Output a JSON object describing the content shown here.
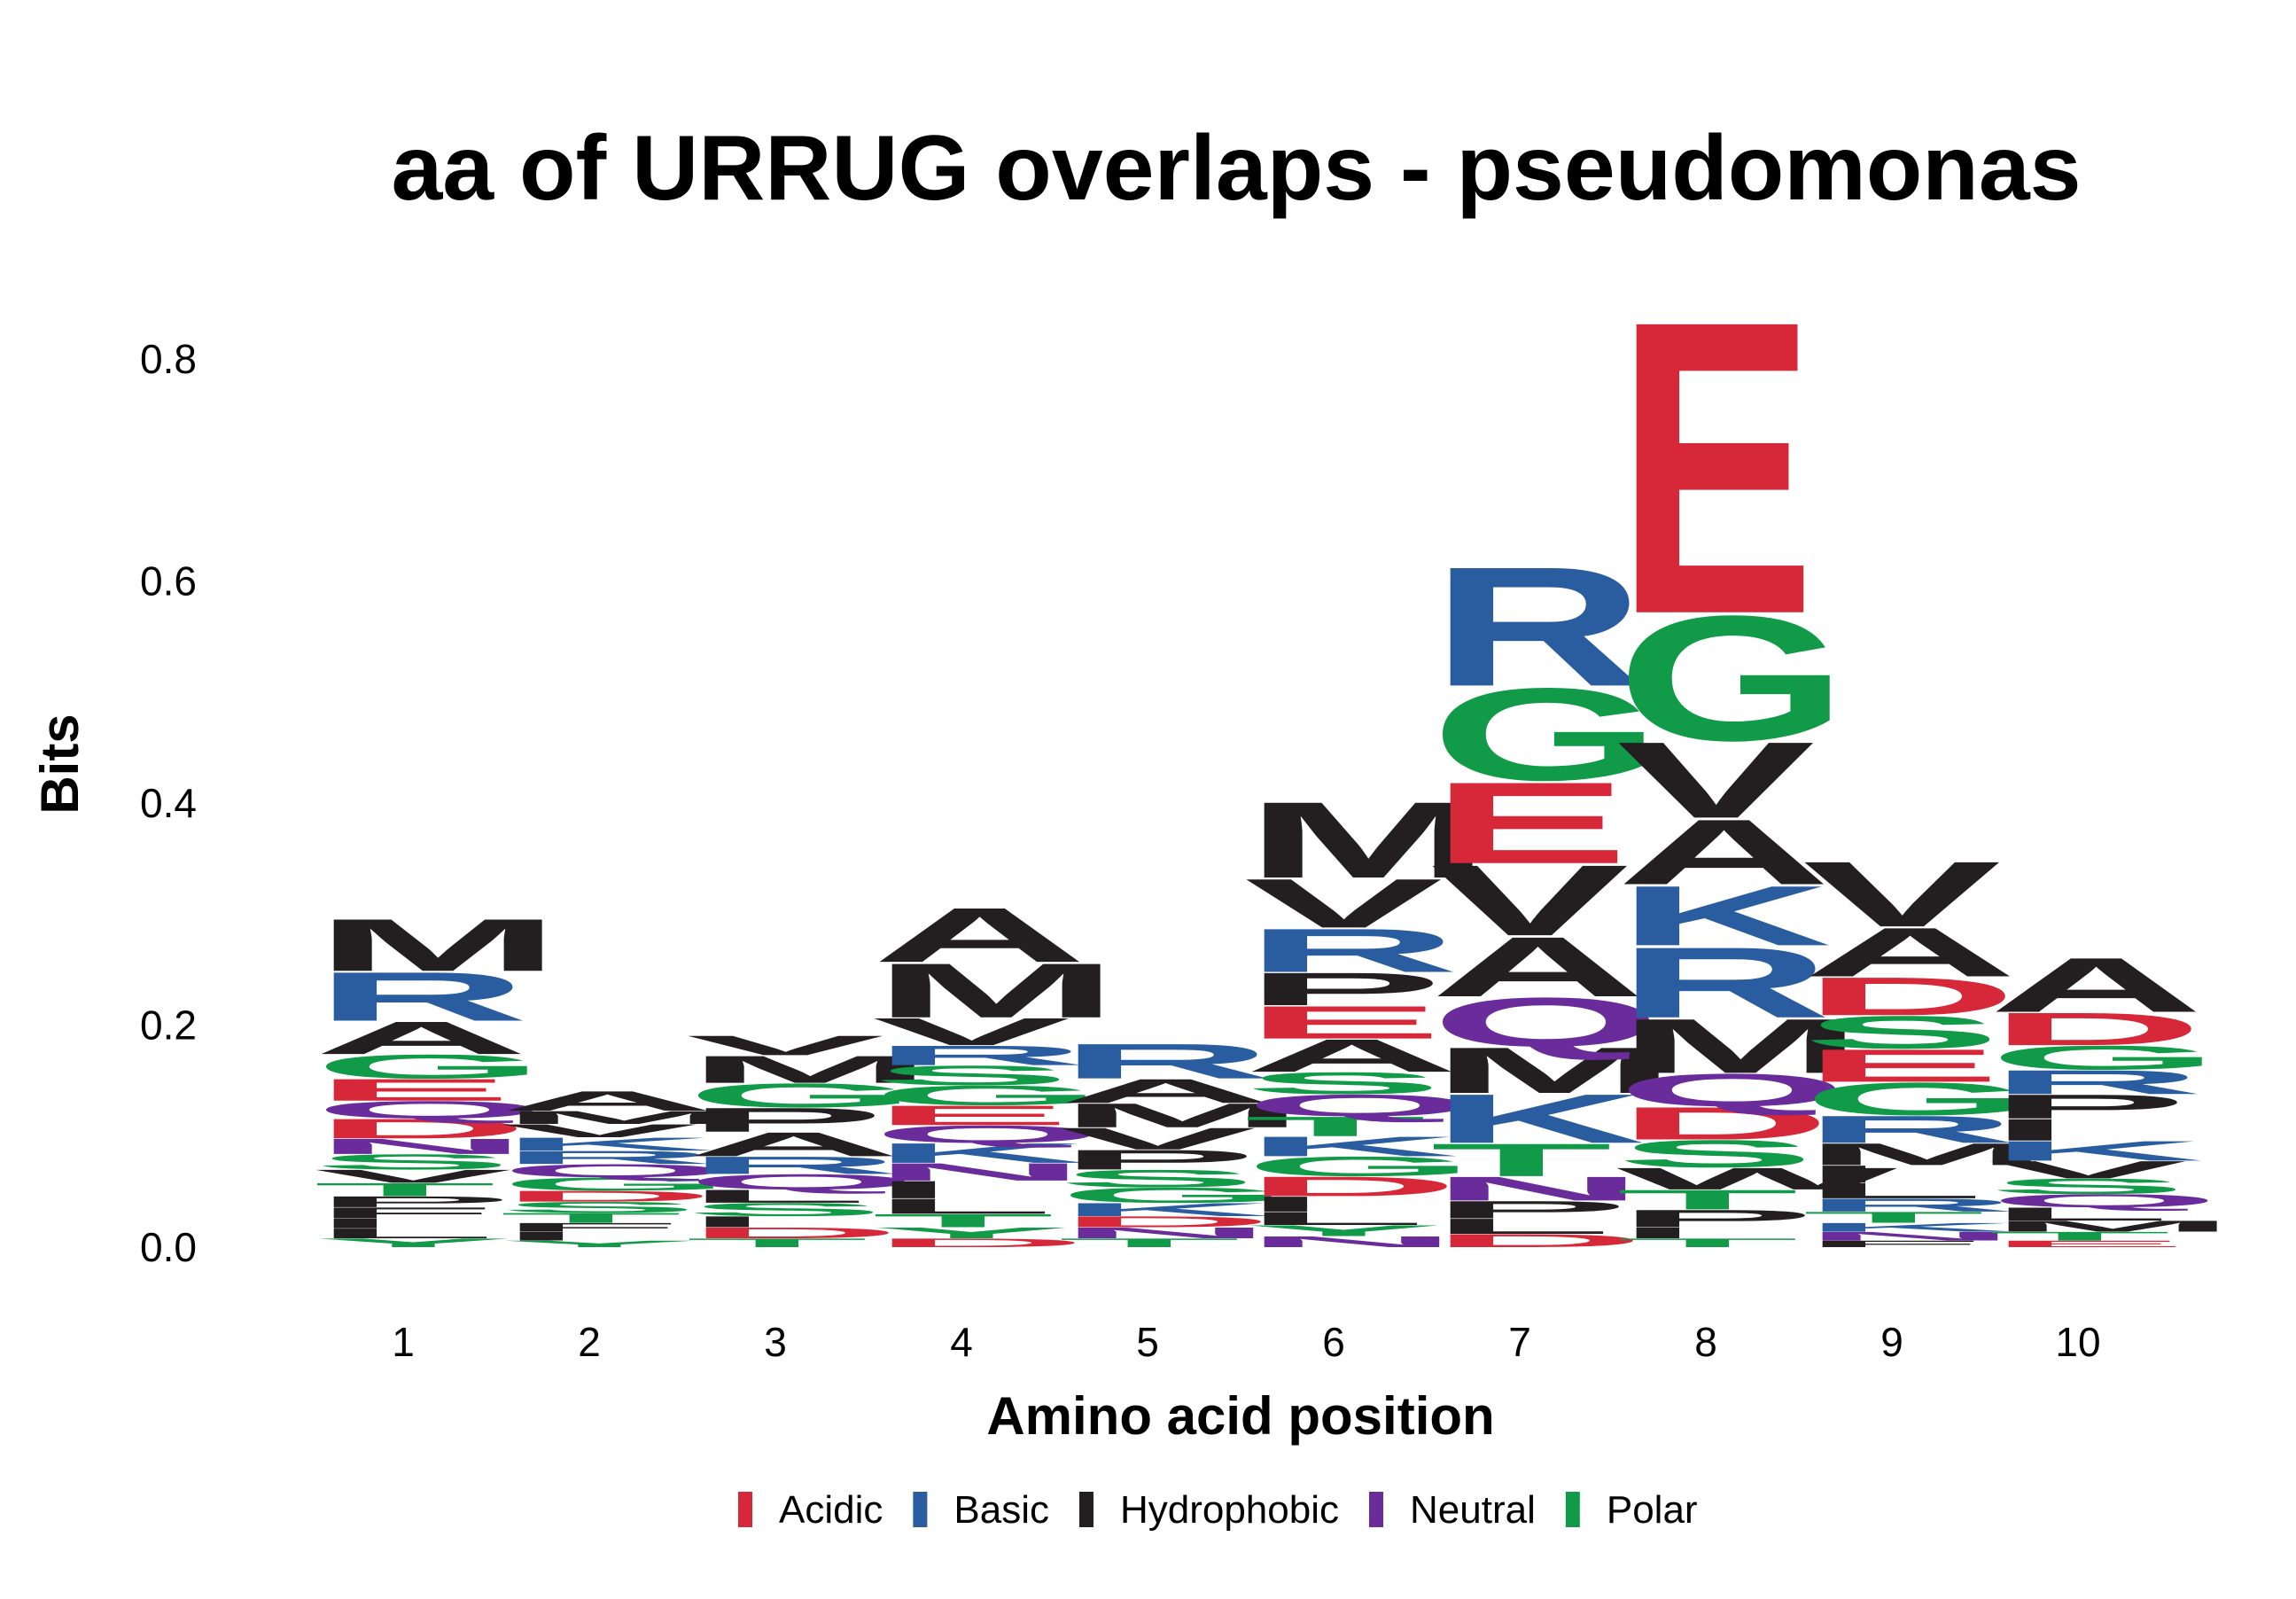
{
  "chart_data": {
    "type": "sequence-logo",
    "title": "aa of URRUG overlaps - pseudomonas",
    "xlabel": "Amino acid position",
    "ylabel": "Bits",
    "x_ticks": [
      "1",
      "2",
      "3",
      "4",
      "5",
      "6",
      "7",
      "8",
      "9",
      "10"
    ],
    "y_ticks": [
      "0.0",
      "0.2",
      "0.4",
      "0.6",
      "0.8"
    ],
    "ylim": [
      0,
      0.9
    ],
    "grid": false,
    "legend_position": "bottom",
    "legend": [
      {
        "label": "Acidic",
        "color": "#d62839"
      },
      {
        "label": "Basic",
        "color": "#2a5d9f"
      },
      {
        "label": "Hydrophobic",
        "color": "#231f20"
      },
      {
        "label": "Neutral",
        "color": "#6a2c9b"
      },
      {
        "label": "Polar",
        "color": "#119a48"
      }
    ],
    "class_colors": {
      "acidic": "#d62839",
      "basic": "#2a5d9f",
      "hydrophobic": "#231f20",
      "neutral": "#6a2c9b",
      "polar": "#119a48"
    },
    "positions": [
      {
        "position": 1,
        "letters": [
          {
            "aa": "Y",
            "class": "polar",
            "bits": 0.008
          },
          {
            "aa": "L",
            "class": "hydrophobic",
            "bits": 0.009
          },
          {
            "aa": "I",
            "class": "hydrophobic",
            "bits": 0.009
          },
          {
            "aa": "F",
            "class": "hydrophobic",
            "bits": 0.01
          },
          {
            "aa": "P",
            "class": "hydrophobic",
            "bits": 0.01
          },
          {
            "aa": "T",
            "class": "polar",
            "bits": 0.012
          },
          {
            "aa": "V",
            "class": "hydrophobic",
            "bits": 0.012
          },
          {
            "aa": "S",
            "class": "polar",
            "bits": 0.014
          },
          {
            "aa": "N",
            "class": "neutral",
            "bits": 0.014
          },
          {
            "aa": "D",
            "class": "acidic",
            "bits": 0.018
          },
          {
            "aa": "Q",
            "class": "neutral",
            "bits": 0.016
          },
          {
            "aa": "E",
            "class": "acidic",
            "bits": 0.02
          },
          {
            "aa": "G",
            "class": "polar",
            "bits": 0.022
          },
          {
            "aa": "A",
            "class": "hydrophobic",
            "bits": 0.03
          },
          {
            "aa": "R",
            "class": "basic",
            "bits": 0.045
          },
          {
            "aa": "M",
            "class": "hydrophobic",
            "bits": 0.048
          }
        ]
      },
      {
        "position": 2,
        "letters": [
          {
            "aa": "Y",
            "class": "polar",
            "bits": 0.006
          },
          {
            "aa": "I",
            "class": "hydrophobic",
            "bits": 0.008
          },
          {
            "aa": "F",
            "class": "hydrophobic",
            "bits": 0.008
          },
          {
            "aa": "T",
            "class": "polar",
            "bits": 0.009
          },
          {
            "aa": "S",
            "class": "polar",
            "bits": 0.01
          },
          {
            "aa": "D",
            "class": "acidic",
            "bits": 0.01
          },
          {
            "aa": "G",
            "class": "polar",
            "bits": 0.012
          },
          {
            "aa": "Q",
            "class": "neutral",
            "bits": 0.012
          },
          {
            "aa": "R",
            "class": "basic",
            "bits": 0.012
          },
          {
            "aa": "K",
            "class": "basic",
            "bits": 0.012
          },
          {
            "aa": "V",
            "class": "hydrophobic",
            "bits": 0.012
          },
          {
            "aa": "M",
            "class": "hydrophobic",
            "bits": 0.012
          },
          {
            "aa": "A",
            "class": "hydrophobic",
            "bits": 0.018
          }
        ]
      },
      {
        "position": 3,
        "letters": [
          {
            "aa": "T",
            "class": "polar",
            "bits": 0.008
          },
          {
            "aa": "D",
            "class": "acidic",
            "bits": 0.01
          },
          {
            "aa": "I",
            "class": "hydrophobic",
            "bits": 0.01
          },
          {
            "aa": "S",
            "class": "polar",
            "bits": 0.012
          },
          {
            "aa": "L",
            "class": "hydrophobic",
            "bits": 0.012
          },
          {
            "aa": "Q",
            "class": "neutral",
            "bits": 0.014
          },
          {
            "aa": "R",
            "class": "basic",
            "bits": 0.016
          },
          {
            "aa": "A",
            "class": "hydrophobic",
            "bits": 0.022
          },
          {
            "aa": "P",
            "class": "hydrophobic",
            "bits": 0.022
          },
          {
            "aa": "G",
            "class": "polar",
            "bits": 0.022
          },
          {
            "aa": "M",
            "class": "hydrophobic",
            "bits": 0.025
          },
          {
            "aa": "V",
            "class": "hydrophobic",
            "bits": 0.018
          }
        ]
      },
      {
        "position": 4,
        "letters": [
          {
            "aa": "D",
            "class": "acidic",
            "bits": 0.008
          },
          {
            "aa": "Y",
            "class": "polar",
            "bits": 0.01
          },
          {
            "aa": "T",
            "class": "polar",
            "bits": 0.012
          },
          {
            "aa": "L",
            "class": "hydrophobic",
            "bits": 0.014
          },
          {
            "aa": "I",
            "class": "hydrophobic",
            "bits": 0.016
          },
          {
            "aa": "N",
            "class": "neutral",
            "bits": 0.016
          },
          {
            "aa": "K",
            "class": "basic",
            "bits": 0.018
          },
          {
            "aa": "Q",
            "class": "neutral",
            "bits": 0.016
          },
          {
            "aa": "E",
            "class": "acidic",
            "bits": 0.018
          },
          {
            "aa": "G",
            "class": "polar",
            "bits": 0.018
          },
          {
            "aa": "S",
            "class": "polar",
            "bits": 0.018
          },
          {
            "aa": "R",
            "class": "basic",
            "bits": 0.018
          },
          {
            "aa": "V",
            "class": "hydrophobic",
            "bits": 0.025
          },
          {
            "aa": "M",
            "class": "hydrophobic",
            "bits": 0.05
          },
          {
            "aa": "A",
            "class": "hydrophobic",
            "bits": 0.05
          }
        ]
      },
      {
        "position": 5,
        "letters": [
          {
            "aa": "T",
            "class": "polar",
            "bits": 0.008
          },
          {
            "aa": "N",
            "class": "neutral",
            "bits": 0.01
          },
          {
            "aa": "D",
            "class": "acidic",
            "bits": 0.01
          },
          {
            "aa": "K",
            "class": "basic",
            "bits": 0.012
          },
          {
            "aa": "G",
            "class": "polar",
            "bits": 0.014
          },
          {
            "aa": "S",
            "class": "polar",
            "bits": 0.016
          },
          {
            "aa": "P",
            "class": "hydrophobic",
            "bits": 0.018
          },
          {
            "aa": "V",
            "class": "hydrophobic",
            "bits": 0.02
          },
          {
            "aa": "M",
            "class": "hydrophobic",
            "bits": 0.022
          },
          {
            "aa": "A",
            "class": "hydrophobic",
            "bits": 0.022
          },
          {
            "aa": "R",
            "class": "basic",
            "bits": 0.032
          }
        ]
      },
      {
        "position": 6,
        "letters": [
          {
            "aa": "N",
            "class": "neutral",
            "bits": 0.01
          },
          {
            "aa": "Y",
            "class": "polar",
            "bits": 0.01
          },
          {
            "aa": "L",
            "class": "hydrophobic",
            "bits": 0.012
          },
          {
            "aa": "I",
            "class": "hydrophobic",
            "bits": 0.014
          },
          {
            "aa": "D",
            "class": "acidic",
            "bits": 0.018
          },
          {
            "aa": "G",
            "class": "polar",
            "bits": 0.018
          },
          {
            "aa": "K",
            "class": "basic",
            "bits": 0.018
          },
          {
            "aa": "T",
            "class": "polar",
            "bits": 0.018
          },
          {
            "aa": "Q",
            "class": "neutral",
            "bits": 0.02
          },
          {
            "aa": "S",
            "class": "polar",
            "bits": 0.02
          },
          {
            "aa": "A",
            "class": "hydrophobic",
            "bits": 0.03
          },
          {
            "aa": "E",
            "class": "acidic",
            "bits": 0.03
          },
          {
            "aa": "P",
            "class": "hydrophobic",
            "bits": 0.03
          },
          {
            "aa": "R",
            "class": "basic",
            "bits": 0.04
          },
          {
            "aa": "V",
            "class": "hydrophobic",
            "bits": 0.045
          },
          {
            "aa": "M",
            "class": "hydrophobic",
            "bits": 0.07
          }
        ]
      },
      {
        "position": 7,
        "letters": [
          {
            "aa": "D",
            "class": "acidic",
            "bits": 0.012
          },
          {
            "aa": "L",
            "class": "hydrophobic",
            "bits": 0.014
          },
          {
            "aa": "P",
            "class": "hydrophobic",
            "bits": 0.016
          },
          {
            "aa": "N",
            "class": "neutral",
            "bits": 0.022
          },
          {
            "aa": "T",
            "class": "polar",
            "bits": 0.03
          },
          {
            "aa": "K",
            "class": "basic",
            "bits": 0.045
          },
          {
            "aa": "M",
            "class": "hydrophobic",
            "bits": 0.042
          },
          {
            "aa": "Q",
            "class": "neutral",
            "bits": 0.045
          },
          {
            "aa": "A",
            "class": "hydrophobic",
            "bits": 0.055
          },
          {
            "aa": "V",
            "class": "hydrophobic",
            "bits": 0.065
          },
          {
            "aa": "E",
            "class": "acidic",
            "bits": 0.075
          },
          {
            "aa": "G",
            "class": "polar",
            "bits": 0.085
          },
          {
            "aa": "R",
            "class": "basic",
            "bits": 0.11
          }
        ]
      },
      {
        "position": 8,
        "letters": [
          {
            "aa": "T",
            "class": "polar",
            "bits": 0.008
          },
          {
            "aa": "I",
            "class": "hydrophobic",
            "bits": 0.01
          },
          {
            "aa": "P",
            "class": "hydrophobic",
            "bits": 0.016
          },
          {
            "aa": "T",
            "class": "polar",
            "bits": 0.018
          },
          {
            "aa": "W",
            "class": "hydrophobic",
            "bits": 0.02
          },
          {
            "aa": "S",
            "class": "polar",
            "bits": 0.025
          },
          {
            "aa": "D",
            "class": "acidic",
            "bits": 0.03
          },
          {
            "aa": "Q",
            "class": "neutral",
            "bits": 0.03
          },
          {
            "aa": "M",
            "class": "hydrophobic",
            "bits": 0.05
          },
          {
            "aa": "R",
            "class": "basic",
            "bits": 0.065
          },
          {
            "aa": "K",
            "class": "basic",
            "bits": 0.055
          },
          {
            "aa": "A",
            "class": "hydrophobic",
            "bits": 0.06
          },
          {
            "aa": "V",
            "class": "hydrophobic",
            "bits": 0.07
          },
          {
            "aa": "G",
            "class": "polar",
            "bits": 0.115
          },
          {
            "aa": "E",
            "class": "acidic",
            "bits": 0.27
          }
        ]
      },
      {
        "position": 9,
        "letters": [
          {
            "aa": "F",
            "class": "hydrophobic",
            "bits": 0.006
          },
          {
            "aa": "N",
            "class": "neutral",
            "bits": 0.008
          },
          {
            "aa": "K",
            "class": "basic",
            "bits": 0.008
          },
          {
            "aa": "T",
            "class": "polar",
            "bits": 0.01
          },
          {
            "aa": "R",
            "class": "basic",
            "bits": 0.012
          },
          {
            "aa": "L",
            "class": "hydrophobic",
            "bits": 0.014
          },
          {
            "aa": "I",
            "class": "hydrophobic",
            "bits": 0.016
          },
          {
            "aa": "M",
            "class": "hydrophobic",
            "bits": 0.02
          },
          {
            "aa": "R",
            "class": "basic",
            "bits": 0.025
          },
          {
            "aa": "G",
            "class": "polar",
            "bits": 0.03
          },
          {
            "aa": "E",
            "class": "acidic",
            "bits": 0.03
          },
          {
            "aa": "S",
            "class": "polar",
            "bits": 0.03
          },
          {
            "aa": "D",
            "class": "acidic",
            "bits": 0.035
          },
          {
            "aa": "A",
            "class": "hydrophobic",
            "bits": 0.045
          },
          {
            "aa": "V",
            "class": "hydrophobic",
            "bits": 0.06
          }
        ]
      },
      {
        "position": 10,
        "letters": [
          {
            "aa": "E",
            "class": "acidic",
            "bits": 0.006
          },
          {
            "aa": "T",
            "class": "polar",
            "bits": 0.008
          },
          {
            "aa": "M",
            "class": "hydrophobic",
            "bits": 0.01
          },
          {
            "aa": "L",
            "class": "hydrophobic",
            "bits": 0.012
          },
          {
            "aa": "Q",
            "class": "neutral",
            "bits": 0.012
          },
          {
            "aa": "S",
            "class": "polar",
            "bits": 0.014
          },
          {
            "aa": "V",
            "class": "hydrophobic",
            "bits": 0.016
          },
          {
            "aa": "K",
            "class": "basic",
            "bits": 0.018
          },
          {
            "aa": "I",
            "class": "hydrophobic",
            "bits": 0.02
          },
          {
            "aa": "P",
            "class": "hydrophobic",
            "bits": 0.022
          },
          {
            "aa": "R",
            "class": "basic",
            "bits": 0.022
          },
          {
            "aa": "G",
            "class": "polar",
            "bits": 0.022
          },
          {
            "aa": "D",
            "class": "acidic",
            "bits": 0.03
          },
          {
            "aa": "A",
            "class": "hydrophobic",
            "bits": 0.05
          }
        ]
      }
    ]
  }
}
